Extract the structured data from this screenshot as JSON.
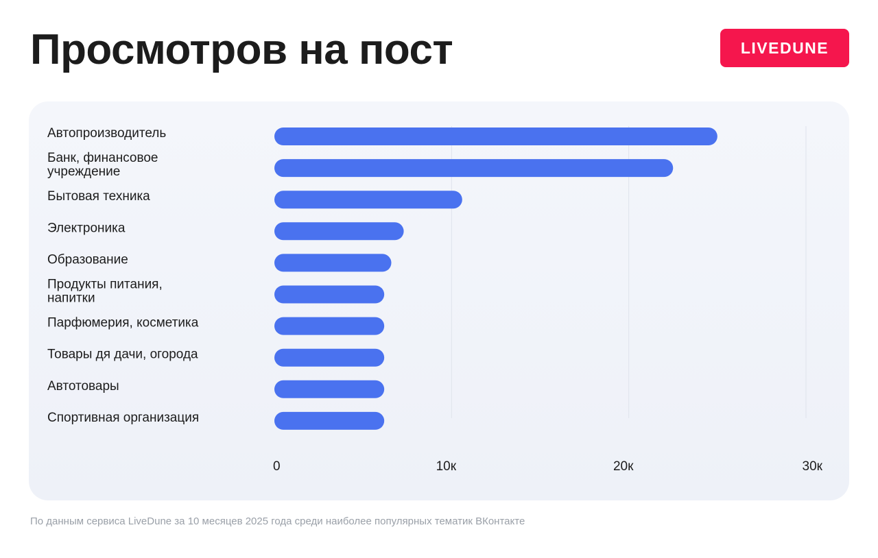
{
  "header": {
    "title": "Просмотров на пост",
    "brand": "LIVEDUNE"
  },
  "colors": {
    "bar": "#4a72ef",
    "brand": "#f5164d",
    "title": "#1c1c1c",
    "card": "#f1f3f9",
    "footnote": "#9aa0a8"
  },
  "chart_data": {
    "type": "bar",
    "orientation": "horizontal",
    "categories": [
      [
        "Автопроизводитель"
      ],
      [
        "Банк, финансовое",
        "учреждение"
      ],
      [
        "Бытовая техника"
      ],
      [
        "Электроника"
      ],
      [
        "Образование"
      ],
      [
        "Продукты питания,",
        "напитки"
      ],
      [
        "Парфюмерия, косметика"
      ],
      [
        "Товары дя дачи, огорода"
      ],
      [
        "Автотовары"
      ],
      [
        "Спортивная организация"
      ]
    ],
    "values": [
      25000,
      22500,
      10600,
      7300,
      6600,
      6200,
      6200,
      6200,
      6200,
      6200
    ],
    "xlim": [
      0,
      30000
    ],
    "x_ticks": [
      0,
      10000,
      20000,
      30000
    ],
    "x_tick_labels": [
      "0",
      "10к",
      "20к",
      "30к"
    ],
    "grid": true
  },
  "footnote": "По данным сервиса LiveDune за 10 месяцев 2025 года среди наиболее популярных тематик ВКонтакте"
}
